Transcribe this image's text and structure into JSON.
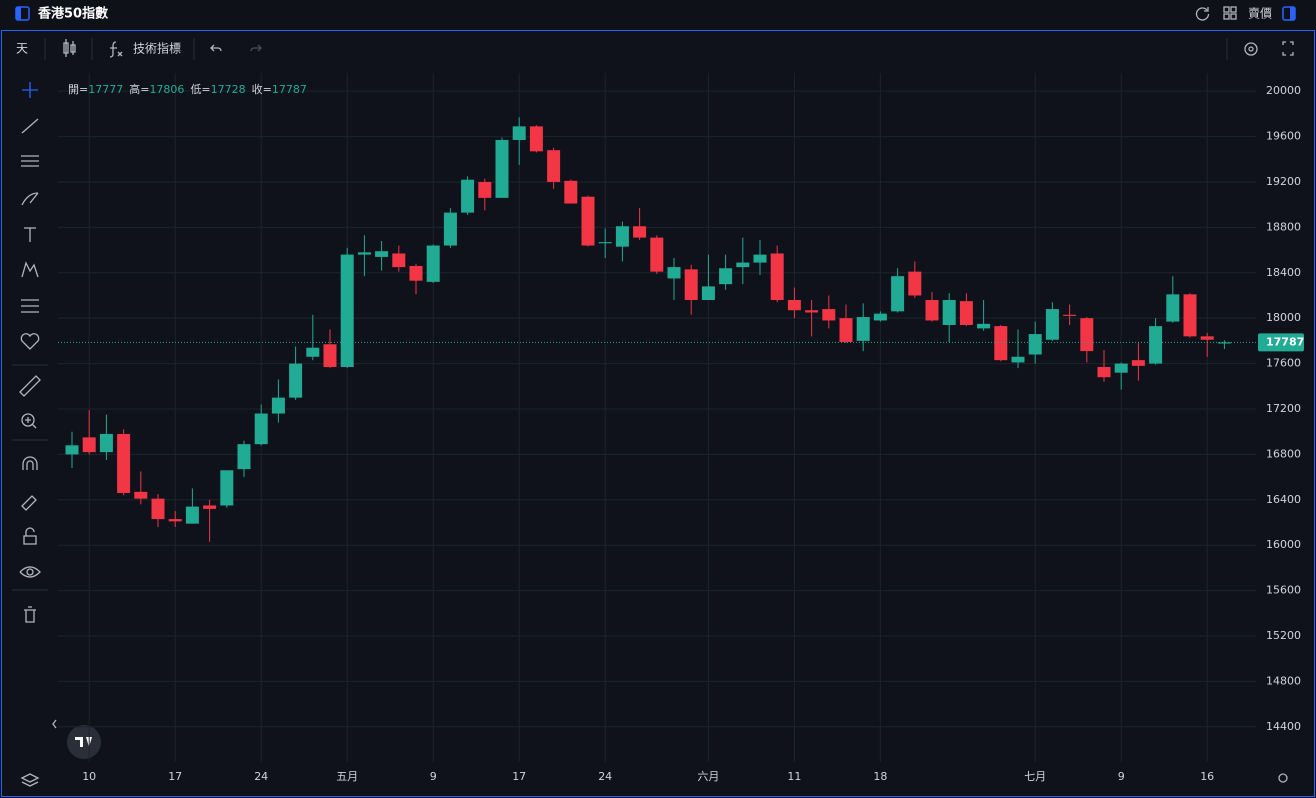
{
  "header": {
    "title": "香港50指數",
    "price_type": "賣價"
  },
  "toolbar": {
    "interval": "天",
    "indicators": "技術指標"
  },
  "chart_data": {
    "type": "candlestick",
    "legend_labels": {
      "open": "開=",
      "high": "高=",
      "low": "低=",
      "close": "收="
    },
    "up_color": "#22ab94",
    "down_color": "#f23645",
    "grid": true,
    "categories": [
      null,
      "10",
      null,
      null,
      null,
      null,
      "17",
      null,
      null,
      null,
      null,
      "24",
      null,
      null,
      null,
      null,
      "五月",
      null,
      null,
      null,
      null,
      "9",
      null,
      null,
      null,
      null,
      "17",
      null,
      null,
      null,
      null,
      "24",
      null,
      null,
      null,
      null,
      null,
      "六月",
      null,
      null,
      null,
      null,
      "11",
      null,
      null,
      null,
      null,
      "18",
      null,
      null,
      null,
      null,
      null,
      null,
      null,
      null,
      "七月",
      null,
      null,
      null,
      null,
      "9",
      null,
      null,
      null,
      null,
      "16",
      null
    ],
    "open": [
      16800,
      16950,
      16820,
      16980,
      16470,
      16410,
      16230,
      16190,
      16350,
      16350,
      16670,
      16890,
      17160,
      17300,
      17660,
      17770,
      17570,
      18560,
      18540,
      18570,
      18460,
      18320,
      18640,
      18930,
      19200,
      19060,
      19570,
      19690,
      19480,
      19210,
      19070,
      18660,
      18630,
      18810,
      18710,
      18350,
      18430,
      18160,
      18300,
      18450,
      18490,
      18570,
      18160,
      18070,
      18080,
      18000,
      17800,
      17980,
      18060,
      18410,
      18160,
      17940,
      18150,
      17910,
      17930,
      17610,
      17680,
      17810,
      18030,
      18000,
      17570,
      17520,
      17630,
      17600,
      17970,
      18210,
      17840,
      17777
    ],
    "high": [
      17000,
      17190,
      17150,
      17020,
      16650,
      16450,
      16300,
      16500,
      16400,
      16660,
      16920,
      17240,
      17460,
      17750,
      18030,
      17900,
      18620,
      18730,
      18680,
      18640,
      18480,
      18650,
      18970,
      19250,
      19230,
      19590,
      19770,
      19700,
      19500,
      19220,
      19080,
      18790,
      18850,
      18970,
      18730,
      18530,
      18470,
      18560,
      18560,
      18710,
      18690,
      18640,
      18270,
      18160,
      18200,
      18120,
      18130,
      18060,
      18440,
      18500,
      18230,
      18220,
      18220,
      18160,
      17940,
      17900,
      17970,
      18140,
      18120,
      18010,
      17720,
      17610,
      17780,
      18000,
      18370,
      18220,
      17870,
      17806
    ],
    "low": [
      16680,
      16800,
      16750,
      16440,
      16360,
      16160,
      16160,
      16190,
      16030,
      16330,
      16600,
      16880,
      17080,
      17280,
      17630,
      17560,
      17560,
      18370,
      18420,
      18410,
      18210,
      18310,
      18620,
      18910,
      18950,
      19060,
      19350,
      19460,
      19140,
      19010,
      18630,
      18530,
      18500,
      18690,
      18390,
      18160,
      18030,
      18160,
      18250,
      18300,
      18380,
      18140,
      18000,
      17840,
      17910,
      17780,
      17710,
      17970,
      18050,
      18180,
      17970,
      17790,
      17930,
      17890,
      17620,
      17560,
      17600,
      17800,
      17940,
      17610,
      17440,
      17370,
      17450,
      17590,
      17960,
      17830,
      17660,
      17728
    ],
    "close": [
      16880,
      16820,
      16980,
      16460,
      16410,
      16230,
      16210,
      16340,
      16320,
      16660,
      16890,
      17160,
      17300,
      17600,
      17740,
      17570,
      18560,
      18580,
      18590,
      18450,
      18330,
      18640,
      18930,
      19220,
      19060,
      19570,
      19690,
      19470,
      19200,
      19010,
      18640,
      18670,
      18810,
      18710,
      18410,
      18450,
      18160,
      18280,
      18440,
      18490,
      18560,
      18160,
      18070,
      18050,
      17980,
      17790,
      18010,
      18040,
      18370,
      18200,
      17980,
      18160,
      17940,
      17950,
      17630,
      17660,
      17860,
      18080,
      18020,
      17710,
      17480,
      17600,
      17580,
      17930,
      18210,
      17840,
      17810,
      17787
    ],
    "ylim": [
      14090,
      20160
    ],
    "yticks": [
      14400,
      14800,
      15200,
      15600,
      16000,
      16400,
      16800,
      17200,
      17600,
      18000,
      18400,
      18800,
      19200,
      19600,
      20000
    ]
  }
}
